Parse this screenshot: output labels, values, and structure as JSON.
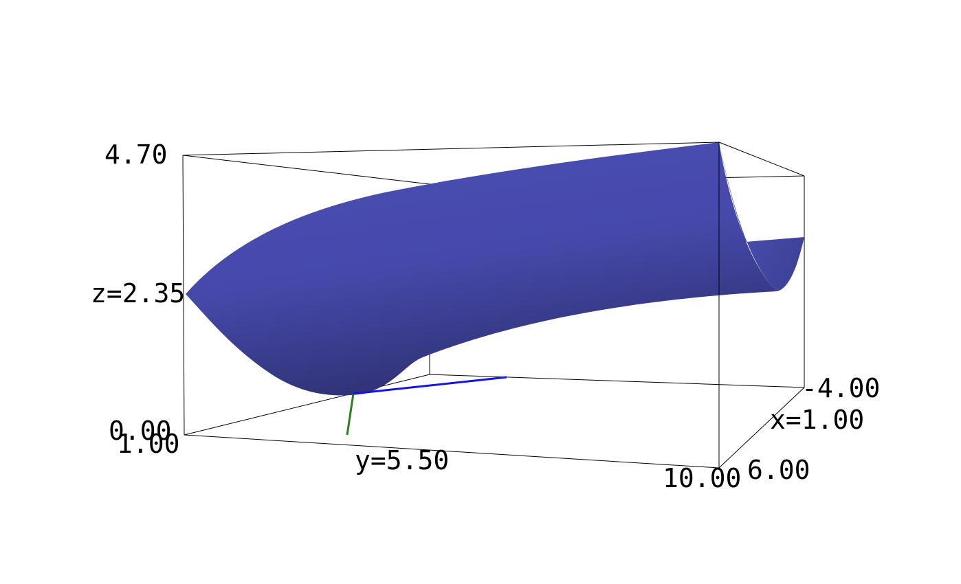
{
  "chart_data": {
    "type": "surface3d",
    "title": "",
    "x_axis": {
      "label": "x=1.00",
      "range": [
        -4.0,
        6.0
      ],
      "ticks": [
        "-4.00",
        "6.00"
      ]
    },
    "y_axis": {
      "label": "y=5.50",
      "range": [
        1.0,
        10.0
      ],
      "ticks": [
        "1.00",
        "10.00"
      ]
    },
    "z_axis": {
      "label": "z=2.35",
      "range": [
        0.0,
        4.7
      ],
      "ticks": [
        "0.00",
        "4.70"
      ]
    },
    "surface_color": "#4b4fb4",
    "axis_colors": {
      "x": "#2e7d1f",
      "y": "#1414e6"
    },
    "surface_profile": [
      {
        "y": 1.0,
        "z_min": 0.0,
        "z_edge": 2.35
      },
      {
        "y": 5.5,
        "z_min": 0.0,
        "z_edge": 3.82
      },
      {
        "y": 10.0,
        "z_min": 2.35,
        "z_edge": 4.7
      }
    ],
    "grid": false,
    "legend": "none"
  }
}
